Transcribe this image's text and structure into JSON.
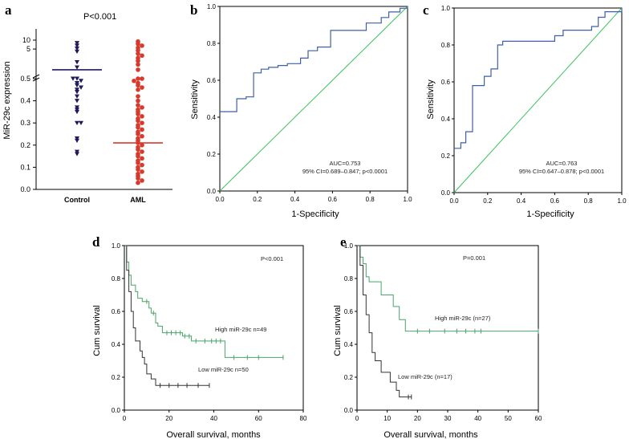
{
  "chart_data": [
    {
      "panel": "a",
      "type": "scatter",
      "annotation": "P<0.001",
      "ylabel": "MiR-29c expression",
      "categories": [
        "Control",
        "AML"
      ],
      "yticks_upper": [
        "10",
        "5"
      ],
      "yticks_lower": [
        "0.5",
        "0.4",
        "0.3",
        "0.2",
        "0.1",
        "0.0"
      ],
      "series": [
        {
          "category": "Control",
          "marker": "triangle-down",
          "color": "#1f1a5e",
          "values": [
            8.0,
            6.5,
            5.2,
            4.1,
            1.8,
            1.2,
            0.5,
            0.48,
            0.49,
            0.47,
            0.5,
            0.46,
            0.45,
            0.44,
            0.42,
            0.4,
            0.37,
            0.36,
            0.35,
            0.3,
            0.3,
            0.23,
            0.22,
            0.17,
            0.16
          ],
          "median_label": ""
        },
        {
          "category": "AML",
          "marker": "circle",
          "color": "#d8392b",
          "values": [
            9.0,
            7.5,
            6.5,
            5.5,
            4.5,
            3.5,
            3.0,
            2.5,
            2.0,
            1.5,
            1.0,
            0.5,
            0.5,
            0.49,
            0.48,
            0.47,
            0.46,
            0.45,
            0.42,
            0.4,
            0.38,
            0.37,
            0.36,
            0.35,
            0.34,
            0.33,
            0.32,
            0.31,
            0.3,
            0.29,
            0.28,
            0.27,
            0.26,
            0.25,
            0.24,
            0.23,
            0.22,
            0.21,
            0.2,
            0.19,
            0.18,
            0.17,
            0.16,
            0.15,
            0.14,
            0.13,
            0.12,
            0.11,
            0.1,
            0.09,
            0.08,
            0.07,
            0.06,
            0.05,
            0.04,
            0.03
          ],
          "median_label": ""
        }
      ],
      "medians": [
        1.0,
        0.21
      ]
    },
    {
      "panel": "b",
      "type": "line",
      "xlabel": "1-Specificity",
      "ylabel": "Sensitivity",
      "xlim": [
        0,
        1
      ],
      "ylim": [
        0,
        1
      ],
      "ticks": [
        "0.0",
        "0.2",
        "0.4",
        "0.6",
        "0.8",
        "1.0"
      ],
      "annotation_lines": [
        "AUC=0.753",
        "95% CI=0.689–0.847; p<0.0001"
      ],
      "roc": [
        [
          0,
          0.43
        ],
        [
          0.09,
          0.43
        ],
        [
          0.09,
          0.5
        ],
        [
          0.14,
          0.5
        ],
        [
          0.14,
          0.51
        ],
        [
          0.18,
          0.51
        ],
        [
          0.18,
          0.64
        ],
        [
          0.22,
          0.64
        ],
        [
          0.22,
          0.66
        ],
        [
          0.26,
          0.66
        ],
        [
          0.26,
          0.67
        ],
        [
          0.31,
          0.67
        ],
        [
          0.31,
          0.68
        ],
        [
          0.36,
          0.68
        ],
        [
          0.36,
          0.69
        ],
        [
          0.43,
          0.69
        ],
        [
          0.43,
          0.72
        ],
        [
          0.47,
          0.72
        ],
        [
          0.47,
          0.76
        ],
        [
          0.52,
          0.76
        ],
        [
          0.52,
          0.78
        ],
        [
          0.59,
          0.78
        ],
        [
          0.59,
          0.87
        ],
        [
          0.78,
          0.87
        ],
        [
          0.78,
          0.91
        ],
        [
          0.86,
          0.91
        ],
        [
          0.86,
          0.94
        ],
        [
          0.9,
          0.94
        ],
        [
          0.9,
          0.97
        ],
        [
          0.96,
          0.97
        ],
        [
          0.96,
          0.99
        ],
        [
          1,
          0.99
        ],
        [
          1,
          1
        ]
      ],
      "roc_color": "#3f5fa8",
      "reference_color": "#3cc25a"
    },
    {
      "panel": "c",
      "type": "line",
      "xlabel": "1-Specificity",
      "ylabel": "Sensitivity",
      "xlim": [
        0,
        1
      ],
      "ylim": [
        0,
        1
      ],
      "ticks": [
        "0.0",
        "0.2",
        "0.4",
        "0.6",
        "0.8",
        "1.0"
      ],
      "annotation_lines": [
        "AUC=0.763",
        "95% CI=0.647–0.878; p<0.0001"
      ],
      "roc": [
        [
          0,
          0.24
        ],
        [
          0.04,
          0.24
        ],
        [
          0.04,
          0.27
        ],
        [
          0.07,
          0.27
        ],
        [
          0.07,
          0.33
        ],
        [
          0.11,
          0.33
        ],
        [
          0.11,
          0.58
        ],
        [
          0.18,
          0.58
        ],
        [
          0.18,
          0.63
        ],
        [
          0.22,
          0.63
        ],
        [
          0.22,
          0.67
        ],
        [
          0.26,
          0.67
        ],
        [
          0.26,
          0.8
        ],
        [
          0.29,
          0.8
        ],
        [
          0.29,
          0.82
        ],
        [
          0.6,
          0.82
        ],
        [
          0.6,
          0.85
        ],
        [
          0.65,
          0.85
        ],
        [
          0.65,
          0.88
        ],
        [
          0.82,
          0.88
        ],
        [
          0.82,
          0.9
        ],
        [
          0.86,
          0.9
        ],
        [
          0.86,
          0.95
        ],
        [
          0.9,
          0.95
        ],
        [
          0.9,
          0.98
        ],
        [
          1,
          0.98
        ],
        [
          1,
          1
        ]
      ],
      "roc_color": "#3f5fa8",
      "reference_color": "#3cc25a"
    },
    {
      "panel": "d",
      "type": "line",
      "xlabel": "Overall survival, months",
      "ylabel": "Cum survival",
      "xlim": [
        0,
        80
      ],
      "ylim": [
        0,
        1
      ],
      "xticks": [
        "0",
        "20",
        "40",
        "60",
        "80"
      ],
      "yticks": [
        "0.0",
        "0.2",
        "0.4",
        "0.6",
        "0.8",
        "1.0"
      ],
      "annotation": "P<0.001",
      "series": [
        {
          "name": "High miR-29c n=49",
          "color": "#4aa36a",
          "points": [
            [
              0,
              1
            ],
            [
              1,
              1
            ],
            [
              1,
              0.9
            ],
            [
              2,
              0.9
            ],
            [
              2,
              0.82
            ],
            [
              3,
              0.82
            ],
            [
              3,
              0.76
            ],
            [
              5,
              0.76
            ],
            [
              5,
              0.72
            ],
            [
              6,
              0.72
            ],
            [
              6,
              0.68
            ],
            [
              8,
              0.68
            ],
            [
              8,
              0.66
            ],
            [
              11,
              0.66
            ],
            [
              11,
              0.62
            ],
            [
              12,
              0.62
            ],
            [
              12,
              0.59
            ],
            [
              14,
              0.59
            ],
            [
              14,
              0.53
            ],
            [
              15,
              0.53
            ],
            [
              15,
              0.51
            ],
            [
              17,
              0.51
            ],
            [
              17,
              0.47
            ],
            [
              26,
              0.47
            ],
            [
              26,
              0.45
            ],
            [
              30,
              0.45
            ],
            [
              30,
              0.42
            ],
            [
              45,
              0.42
            ],
            [
              45,
              0.32
            ],
            [
              71,
              0.32
            ]
          ],
          "censor": [
            10,
            13,
            19,
            21,
            23,
            25,
            27,
            29,
            32,
            36,
            39,
            41,
            43,
            49,
            55,
            60,
            71
          ]
        },
        {
          "name": "Low miR-29c n=50",
          "color": "#333333",
          "points": [
            [
              0,
              1
            ],
            [
              1,
              1
            ],
            [
              1,
              0.85
            ],
            [
              2,
              0.85
            ],
            [
              2,
              0.72
            ],
            [
              3,
              0.72
            ],
            [
              3,
              0.6
            ],
            [
              4,
              0.6
            ],
            [
              4,
              0.5
            ],
            [
              5,
              0.5
            ],
            [
              5,
              0.42
            ],
            [
              7,
              0.42
            ],
            [
              7,
              0.36
            ],
            [
              8,
              0.36
            ],
            [
              8,
              0.32
            ],
            [
              9,
              0.32
            ],
            [
              9,
              0.28
            ],
            [
              10,
              0.28
            ],
            [
              10,
              0.22
            ],
            [
              12,
              0.22
            ],
            [
              12,
              0.19
            ],
            [
              14,
              0.19
            ],
            [
              14,
              0.15
            ],
            [
              38,
              0.15
            ]
          ],
          "censor": [
            16,
            20,
            24,
            28,
            33,
            38
          ]
        }
      ]
    },
    {
      "panel": "e",
      "type": "line",
      "xlabel": "Overall survival, months",
      "ylabel": "Cum survival",
      "xlim": [
        0,
        60
      ],
      "ylim": [
        0,
        1
      ],
      "xticks": [
        "0",
        "10",
        "20",
        "30",
        "40",
        "50",
        "60"
      ],
      "yticks": [
        "0.0",
        "0.2",
        "0.4",
        "0.6",
        "0.8",
        "1.0"
      ],
      "annotation": "P=0.001",
      "series": [
        {
          "name": "High miR-29c (n=27)",
          "color": "#4aa36a",
          "points": [
            [
              0,
              1
            ],
            [
              1,
              1
            ],
            [
              1,
              0.93
            ],
            [
              2,
              0.93
            ],
            [
              2,
              0.89
            ],
            [
              3,
              0.89
            ],
            [
              3,
              0.81
            ],
            [
              4,
              0.81
            ],
            [
              4,
              0.78
            ],
            [
              8,
              0.78
            ],
            [
              8,
              0.7
            ],
            [
              12,
              0.7
            ],
            [
              12,
              0.63
            ],
            [
              14,
              0.63
            ],
            [
              14,
              0.55
            ],
            [
              16,
              0.55
            ],
            [
              16,
              0.48
            ],
            [
              60,
              0.48
            ]
          ],
          "censor": [
            20,
            24,
            29,
            33,
            36,
            39,
            41,
            60
          ]
        },
        {
          "name": "Low miR-29c (n=17)",
          "color": "#333333",
          "points": [
            [
              0,
              1
            ],
            [
              1,
              1
            ],
            [
              1,
              0.88
            ],
            [
              2,
              0.88
            ],
            [
              2,
              0.7
            ],
            [
              3,
              0.7
            ],
            [
              3,
              0.58
            ],
            [
              4,
              0.58
            ],
            [
              4,
              0.47
            ],
            [
              5,
              0.47
            ],
            [
              5,
              0.35
            ],
            [
              6,
              0.35
            ],
            [
              6,
              0.3
            ],
            [
              8,
              0.3
            ],
            [
              8,
              0.23
            ],
            [
              11,
              0.23
            ],
            [
              11,
              0.17
            ],
            [
              13,
              0.17
            ],
            [
              13,
              0.12
            ],
            [
              14,
              0.12
            ],
            [
              14,
              0.08
            ],
            [
              18,
              0.08
            ]
          ],
          "censor": [
            17,
            18
          ]
        }
      ]
    }
  ]
}
